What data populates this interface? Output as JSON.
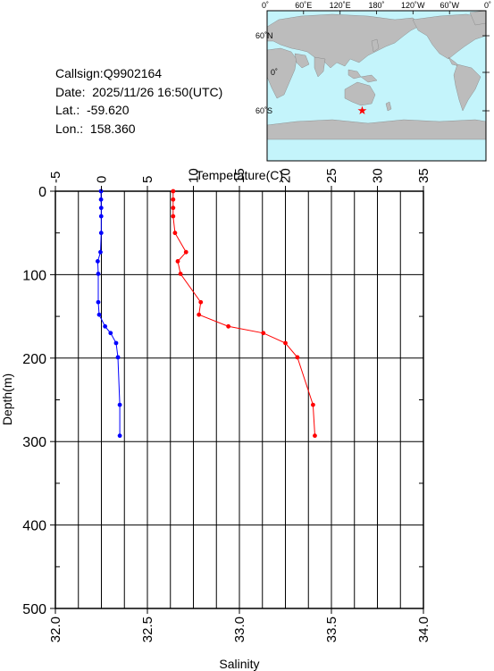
{
  "info": {
    "callsign": "Callsign:Q9902164",
    "date": "Date:  2025/11/26 16:50(UTC)",
    "lat": "Lat.:  -59.620",
    "lon": "Lon.:  158.360"
  },
  "map": {
    "lon_labels": [
      "0˚",
      "60˚E",
      "120˚E",
      "180˚",
      "120˚W",
      "60˚W",
      "0˚"
    ],
    "lat_labels": [
      "60˚N",
      "0˚",
      "60˚S"
    ],
    "ocean_color": "#c4f4fb",
    "land_color": "#bcbcbc",
    "marker_color": "#ff0000"
  },
  "chart_data": {
    "type": "line",
    "ylabel": "Depth(m)",
    "ylim": [
      500,
      0
    ],
    "yticks": [
      "0",
      "100",
      "200",
      "300",
      "400",
      "500"
    ],
    "temperature_axis": {
      "label": "Temperature(C)",
      "range": [
        -5,
        35
      ],
      "ticks": [
        "-5",
        "0",
        "5",
        "10",
        "15",
        "20",
        "25",
        "30",
        "35"
      ]
    },
    "salinity_axis": {
      "label": "Salinity",
      "range": [
        32.0,
        34.0
      ],
      "ticks": [
        "32.0",
        "32.5",
        "33.0",
        "33.5",
        "34.0"
      ]
    },
    "grid": true,
    "series": [
      {
        "axis": "temperature",
        "color": "#ff0000",
        "points": [
          [
            7.8,
            0
          ],
          [
            7.8,
            10
          ],
          [
            7.8,
            20
          ],
          [
            7.8,
            30
          ],
          [
            8.0,
            50
          ],
          [
            9.2,
            73
          ],
          [
            8.3,
            84
          ],
          [
            8.6,
            99
          ],
          [
            10.8,
            133
          ],
          [
            10.6,
            148
          ],
          [
            13.8,
            162
          ],
          [
            17.6,
            170
          ],
          [
            20.0,
            182
          ],
          [
            21.3,
            199
          ],
          [
            23.0,
            256
          ],
          [
            23.2,
            293
          ]
        ]
      },
      {
        "axis": "salinity",
        "color": "#0000ff",
        "points": [
          [
            32.248,
            0
          ],
          [
            32.248,
            10
          ],
          [
            32.249,
            20
          ],
          [
            32.249,
            30
          ],
          [
            32.249,
            50
          ],
          [
            32.245,
            73
          ],
          [
            32.23,
            84
          ],
          [
            32.233,
            99
          ],
          [
            32.233,
            133
          ],
          [
            32.238,
            148
          ],
          [
            32.27,
            162
          ],
          [
            32.3,
            170
          ],
          [
            32.33,
            182
          ],
          [
            32.34,
            199
          ],
          [
            32.35,
            256
          ],
          [
            32.35,
            293
          ]
        ]
      }
    ]
  }
}
